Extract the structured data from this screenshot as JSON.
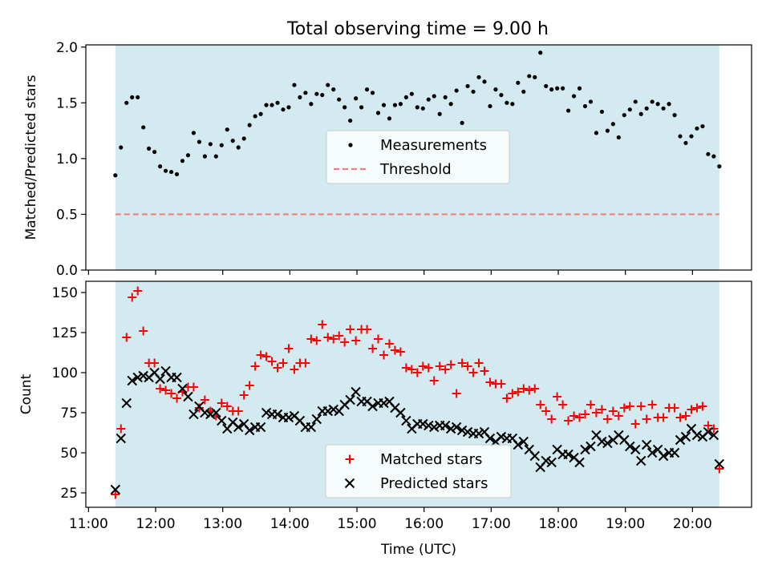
{
  "title": "Total observing time = 9.00 h",
  "colors": {
    "shade": "#d3eaf0",
    "measurement": "#000000",
    "threshold": "#f08080",
    "matched": "#ff0000",
    "predicted": "#000000"
  },
  "chart_data": [
    {
      "type": "scatter",
      "panel": "top",
      "ylabel": "Matched/Predicted stars",
      "xlim": [
        10.96,
        20.88
      ],
      "ylim": [
        0,
        2.02
      ],
      "yticks": [
        0.0,
        0.5,
        1.0,
        1.5,
        2.0
      ],
      "ytick_labels": [
        "0.0",
        "0.5",
        "1.0",
        "1.5",
        "2.0"
      ],
      "shaded_span": [
        "11:24",
        "20:24"
      ],
      "legend_position": "center",
      "threshold": {
        "name": "Threshold",
        "value": 0.5,
        "style": "dashed"
      },
      "series": [
        {
          "name": "Measurements",
          "marker": "dot",
          "x": [
            "11:24",
            "11:29",
            "11:34",
            "11:39",
            "11:44",
            "11:49",
            "11:54",
            "11:59",
            "12:04",
            "12:09",
            "12:14",
            "12:19",
            "12:24",
            "12:29",
            "12:34",
            "12:39",
            "12:44",
            "12:49",
            "12:54",
            "12:59",
            "13:04",
            "13:09",
            "13:14",
            "13:19",
            "13:24",
            "13:29",
            "13:34",
            "13:39",
            "13:44",
            "13:49",
            "13:54",
            "13:59",
            "14:04",
            "14:09",
            "14:14",
            "14:19",
            "14:24",
            "14:29",
            "14:34",
            "14:39",
            "14:44",
            "14:49",
            "14:54",
            "14:59",
            "15:04",
            "15:09",
            "15:14",
            "15:19",
            "15:24",
            "15:29",
            "15:34",
            "15:39",
            "15:44",
            "15:49",
            "15:54",
            "15:59",
            "16:04",
            "16:09",
            "16:14",
            "16:19",
            "16:24",
            "16:29",
            "16:34",
            "16:39",
            "16:44",
            "16:49",
            "16:54",
            "16:59",
            "17:04",
            "17:09",
            "17:14",
            "17:19",
            "17:24",
            "17:29",
            "17:34",
            "17:39",
            "17:44",
            "17:49",
            "17:54",
            "17:59",
            "18:04",
            "18:09",
            "18:14",
            "18:19",
            "18:24",
            "18:29",
            "18:34",
            "18:39",
            "18:44",
            "18:49",
            "18:54",
            "18:59",
            "19:04",
            "19:09",
            "19:14",
            "19:19",
            "19:24",
            "19:29",
            "19:34",
            "19:39",
            "19:44",
            "19:49",
            "19:54",
            "19:59",
            "20:04",
            "20:09",
            "20:14",
            "20:19",
            "20:24"
          ],
          "y": [
            0.85,
            1.1,
            1.5,
            1.55,
            1.55,
            1.28,
            1.09,
            1.06,
            0.93,
            0.89,
            0.88,
            0.86,
            0.98,
            1.03,
            1.23,
            1.15,
            1.02,
            1.13,
            1.02,
            1.12,
            1.26,
            1.16,
            1.1,
            1.18,
            1.3,
            1.38,
            1.4,
            1.48,
            1.48,
            1.5,
            1.44,
            1.46,
            1.66,
            1.55,
            1.59,
            1.49,
            1.58,
            1.57,
            1.66,
            1.62,
            1.53,
            1.46,
            1.34,
            1.54,
            1.46,
            1.62,
            1.59,
            1.41,
            1.48,
            1.36,
            1.48,
            1.49,
            1.55,
            1.58,
            1.46,
            1.45,
            1.53,
            1.56,
            1.4,
            1.55,
            1.49,
            1.61,
            1.32,
            1.65,
            1.6,
            1.73,
            1.69,
            1.47,
            1.62,
            1.57,
            1.5,
            1.49,
            1.68,
            1.6,
            1.74,
            1.73,
            1.95,
            1.65,
            1.62,
            1.63,
            1.63,
            1.43,
            1.56,
            1.63,
            1.47,
            1.51,
            1.23,
            1.42,
            1.25,
            1.31,
            1.19,
            1.39,
            1.44,
            1.51,
            1.4,
            1.45,
            1.51,
            1.49,
            1.45,
            1.49,
            1.39,
            1.2,
            1.14,
            1.2,
            1.27,
            1.29,
            1.04,
            1.02,
            0.93
          ]
        }
      ]
    },
    {
      "type": "scatter",
      "panel": "bottom",
      "xlabel": "Time (UTC)",
      "ylabel": "Count",
      "xlim": [
        10.96,
        20.88
      ],
      "ylim": [
        16,
        157
      ],
      "xticks": [
        "11:00",
        "12:00",
        "13:00",
        "14:00",
        "15:00",
        "16:00",
        "17:00",
        "18:00",
        "19:00",
        "20:00"
      ],
      "yticks": [
        25,
        50,
        75,
        100,
        125,
        150
      ],
      "shaded_span": [
        "11:24",
        "20:24"
      ],
      "legend_position": "lower center",
      "series": [
        {
          "name": "Matched stars",
          "marker": "plus",
          "x": [
            "11:24",
            "11:29",
            "11:34",
            "11:39",
            "11:44",
            "11:49",
            "11:54",
            "11:59",
            "12:04",
            "12:09",
            "12:14",
            "12:19",
            "12:24",
            "12:29",
            "12:34",
            "12:39",
            "12:44",
            "12:49",
            "12:54",
            "12:59",
            "13:04",
            "13:09",
            "13:14",
            "13:19",
            "13:24",
            "13:29",
            "13:34",
            "13:39",
            "13:44",
            "13:49",
            "13:54",
            "13:59",
            "14:04",
            "14:09",
            "14:14",
            "14:19",
            "14:24",
            "14:29",
            "14:34",
            "14:39",
            "14:44",
            "14:49",
            "14:54",
            "14:59",
            "15:04",
            "15:09",
            "15:14",
            "15:19",
            "15:24",
            "15:29",
            "15:34",
            "15:39",
            "15:44",
            "15:49",
            "15:54",
            "15:59",
            "16:04",
            "16:09",
            "16:14",
            "16:19",
            "16:24",
            "16:29",
            "16:34",
            "16:39",
            "16:44",
            "16:49",
            "16:54",
            "16:59",
            "17:04",
            "17:09",
            "17:14",
            "17:19",
            "17:24",
            "17:29",
            "17:34",
            "17:39",
            "17:44",
            "17:49",
            "17:54",
            "17:59",
            "18:04",
            "18:09",
            "18:14",
            "18:19",
            "18:24",
            "18:29",
            "18:34",
            "18:39",
            "18:44",
            "18:49",
            "18:54",
            "18:59",
            "19:04",
            "19:09",
            "19:14",
            "19:19",
            "19:24",
            "19:29",
            "19:34",
            "19:39",
            "19:44",
            "19:49",
            "19:54",
            "19:59",
            "20:04",
            "20:09",
            "20:14",
            "20:19",
            "20:24"
          ],
          "y": [
            24,
            65,
            122,
            147,
            151,
            126,
            106,
            106,
            90,
            89,
            87,
            84,
            88,
            91,
            91,
            78,
            83,
            76,
            73,
            81,
            79,
            76,
            76,
            86,
            92,
            104,
            111,
            110,
            107,
            103,
            106,
            115,
            102,
            106,
            106,
            121,
            120,
            130,
            122,
            121,
            123,
            119,
            127,
            120,
            127,
            127,
            115,
            121,
            111,
            118,
            114,
            113,
            103,
            102,
            100,
            104,
            103,
            95,
            104,
            102,
            105,
            87,
            106,
            104,
            100,
            106,
            101,
            94,
            93,
            93,
            84,
            87,
            88,
            90,
            89,
            90,
            80,
            76,
            71,
            85,
            80,
            70,
            73,
            72,
            74,
            80,
            75,
            77,
            71,
            76,
            73,
            78,
            79,
            68,
            79,
            71,
            80,
            72,
            72,
            78,
            78,
            72,
            73,
            77,
            78,
            79,
            67,
            65,
            40
          ]
        },
        {
          "name": "Predicted stars",
          "marker": "x",
          "x": [
            "11:24",
            "11:29",
            "11:34",
            "11:39",
            "11:44",
            "11:49",
            "11:54",
            "11:59",
            "12:04",
            "12:09",
            "12:14",
            "12:19",
            "12:24",
            "12:29",
            "12:34",
            "12:39",
            "12:44",
            "12:49",
            "12:54",
            "12:59",
            "13:04",
            "13:09",
            "13:14",
            "13:19",
            "13:24",
            "13:29",
            "13:34",
            "13:39",
            "13:44",
            "13:49",
            "13:54",
            "13:59",
            "14:04",
            "14:09",
            "14:14",
            "14:19",
            "14:24",
            "14:29",
            "14:34",
            "14:39",
            "14:44",
            "14:49",
            "14:54",
            "14:59",
            "15:04",
            "15:09",
            "15:14",
            "15:19",
            "15:24",
            "15:29",
            "15:34",
            "15:39",
            "15:44",
            "15:49",
            "15:54",
            "15:59",
            "16:04",
            "16:09",
            "16:14",
            "16:19",
            "16:24",
            "16:29",
            "16:34",
            "16:39",
            "16:44",
            "16:49",
            "16:54",
            "16:59",
            "17:04",
            "17:09",
            "17:14",
            "17:19",
            "17:24",
            "17:29",
            "17:34",
            "17:39",
            "17:44",
            "17:49",
            "17:54",
            "17:59",
            "18:04",
            "18:09",
            "18:14",
            "18:19",
            "18:24",
            "18:29",
            "18:34",
            "18:39",
            "18:44",
            "18:49",
            "18:54",
            "18:59",
            "19:04",
            "19:09",
            "19:14",
            "19:19",
            "19:24",
            "19:29",
            "19:34",
            "19:39",
            "19:44",
            "19:49",
            "19:54",
            "19:59",
            "20:04",
            "20:09",
            "20:14",
            "20:19",
            "20:24"
          ],
          "y": [
            27,
            59,
            81,
            95,
            97,
            98,
            97,
            100,
            96,
            101,
            97,
            97,
            90,
            85,
            74,
            79,
            75,
            74,
            75,
            70,
            65,
            69,
            66,
            68,
            64,
            66,
            66,
            75,
            74,
            74,
            72,
            72,
            73,
            70,
            66,
            66,
            71,
            76,
            76,
            77,
            76,
            80,
            83,
            88,
            82,
            82,
            79,
            81,
            81,
            82,
            78,
            75,
            70,
            65,
            68,
            68,
            67,
            66,
            67,
            67,
            65,
            66,
            64,
            63,
            62,
            62,
            63,
            59,
            57,
            60,
            59,
            59,
            55,
            57,
            52,
            48,
            41,
            45,
            44,
            52,
            49,
            49,
            47,
            44,
            52,
            54,
            61,
            57,
            56,
            58,
            61,
            58,
            54,
            52,
            45,
            55,
            50,
            52,
            48,
            50,
            50,
            58,
            60,
            65,
            61,
            60,
            63,
            61,
            43
          ]
        }
      ]
    }
  ]
}
